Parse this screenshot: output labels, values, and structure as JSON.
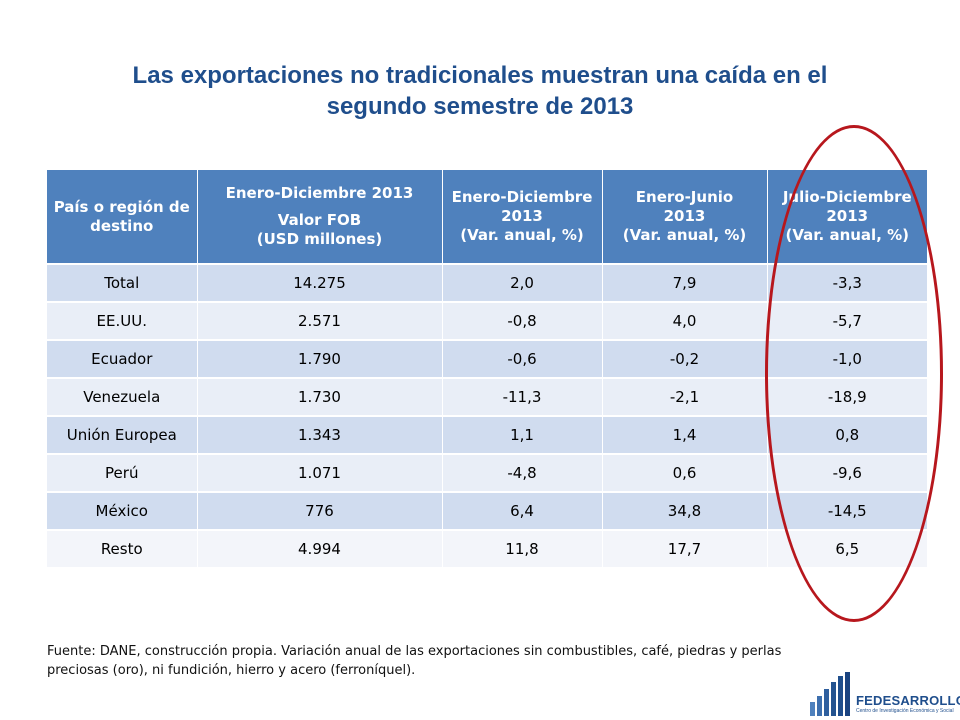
{
  "title": {
    "line1": "Las exportaciones no tradicionales muestran una caída en el",
    "line2": "segundo semestre de 2013"
  },
  "table": {
    "headers": [
      {
        "lines": [
          "País o región de",
          "destino"
        ]
      },
      {
        "lines": [
          "Enero-Diciembre 2013",
          "Valor FOB",
          "(USD millones)"
        ]
      },
      {
        "lines": [
          "Enero-Diciembre",
          "2013",
          "(Var. anual, %)"
        ]
      },
      {
        "lines": [
          "Enero-Junio",
          "2013",
          "(Var. anual, %)"
        ]
      },
      {
        "lines": [
          "Julio-Diciembre",
          "2013",
          "(Var. anual, %)"
        ]
      }
    ],
    "rows": [
      [
        "Total",
        "14.275",
        "2,0",
        "7,9",
        "-3,3"
      ],
      [
        "EE.UU.",
        "2.571",
        "-0,8",
        "4,0",
        "-5,7"
      ],
      [
        "Ecuador",
        "1.790",
        "-0,6",
        "-0,2",
        "-1,0"
      ],
      [
        "Venezuela",
        "1.730",
        "-11,3",
        "-2,1",
        "-18,9"
      ],
      [
        "Unión Europea",
        "1.343",
        "1,1",
        "1,4",
        "0,8"
      ],
      [
        "Perú",
        "1.071",
        "-4,8",
        "0,6",
        "-9,6"
      ],
      [
        "México",
        "776",
        "6,4",
        "34,8",
        "-14,5"
      ],
      [
        "Resto",
        "4.994",
        "11,8",
        "17,7",
        "6,5"
      ]
    ]
  },
  "footnote": {
    "line1": "Fuente: DANE, construcción propia. Variación anual de las exportaciones sin combustibles, café, piedras y perlas",
    "line2": "preciosas (oro), ni fundición, hierro y acero (ferroníquel)."
  },
  "logo": {
    "name": "FEDESARROLLO",
    "tagline": "Centro de Investigación Económica y Social"
  },
  "colors": {
    "title": "#1f4e8c",
    "header_bg": "#4f81bd",
    "row_odd": "#d0dcef",
    "row_even": "#e9eef7",
    "highlight_ellipse": "#b7171d"
  }
}
